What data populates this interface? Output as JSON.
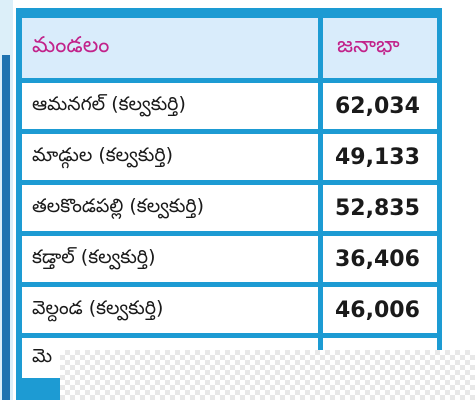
{
  "table": {
    "headers": {
      "mandal": "మండలం",
      "population": "జనాభా"
    },
    "rows": [
      {
        "mandal": "ఆమనగల్ (కల్వకుర్తి)",
        "population": "62,034"
      },
      {
        "mandal": "మాడ్గుల (కల్వకుర్తి)",
        "population": "49,133"
      },
      {
        "mandal": "తలకొండపల్లి (కల్వకుర్తి)",
        "population": "52,835"
      },
      {
        "mandal": "కడ్తాల్ (కల్వకుర్తి)",
        "population": "36,406"
      },
      {
        "mandal": "వెల్దండ (కల్వకుర్తి)",
        "population": "46,006"
      },
      {
        "mandal": "మె",
        "population": ""
      }
    ]
  },
  "colors": {
    "frame": "#1d9bd3",
    "header_background": "#d9ecfb",
    "header_text": "#c2228a",
    "accent_bar": "#1f73b0"
  }
}
